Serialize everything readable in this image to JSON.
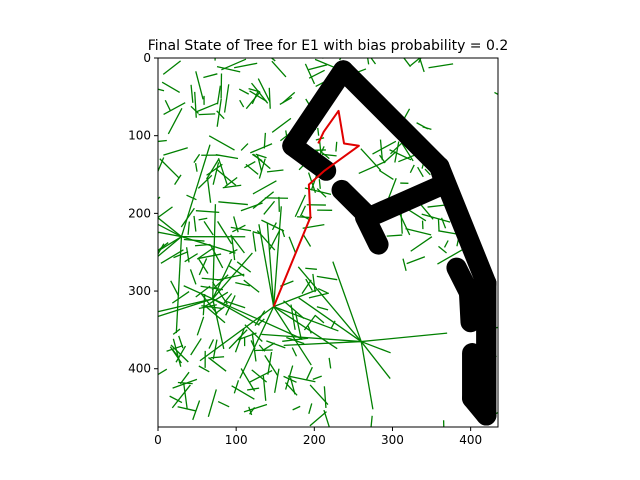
{
  "chart_data": {
    "type": "line",
    "title": "Final State of Tree for E1 with bias probability = 0.2",
    "xlabel": "",
    "ylabel": "",
    "xlim": [
      0,
      435
    ],
    "ylim": [
      475,
      0
    ],
    "y_inverted": true,
    "grid": false,
    "xticks": [
      0,
      100,
      200,
      300,
      400
    ],
    "yticks": [
      0,
      100,
      200,
      300,
      400
    ],
    "colors": {
      "tree": "#008000",
      "path": "#e00000",
      "obstacle": "#000000"
    },
    "series": [
      {
        "role": "obstacle",
        "color": "#000000",
        "stroke_width_units": 26,
        "segments": [
          [
            [
              237,
              16
            ],
            [
              172,
              113
            ]
          ],
          [
            [
              237,
              16
            ],
            [
              360,
              140
            ]
          ],
          [
            [
              172,
              113
            ],
            [
              215,
              145
            ]
          ],
          [
            [
              235,
              170
            ],
            [
              270,
              205
            ]
          ],
          [
            [
              270,
              205
            ],
            [
              360,
              165
            ]
          ],
          [
            [
              265,
              205
            ],
            [
              282,
              240
            ]
          ],
          [
            [
              360,
              140
            ],
            [
              368,
              165
            ]
          ],
          [
            [
              360,
              140
            ],
            [
              420,
              290
            ]
          ],
          [
            [
              382,
              270
            ],
            [
              398,
              302
            ]
          ],
          [
            [
              398,
              302
            ],
            [
              420,
              290
            ]
          ],
          [
            [
              398,
              302
            ],
            [
              400,
              340
            ]
          ],
          [
            [
              420,
              290
            ],
            [
              420,
              460
            ]
          ],
          [
            [
              402,
              380
            ],
            [
              402,
              438
            ]
          ],
          [
            [
              402,
              438
            ],
            [
              420,
              460
            ]
          ]
        ]
      },
      {
        "role": "path",
        "color": "#e00000",
        "points": [
          [
            148,
            320
          ],
          [
            195,
            205
          ],
          [
            193,
            163
          ],
          [
            213,
            145
          ],
          [
            257,
            113
          ],
          [
            238,
            110
          ],
          [
            231,
            68
          ],
          [
            212,
            95
          ],
          [
            205,
            110
          ]
        ]
      }
    ]
  }
}
